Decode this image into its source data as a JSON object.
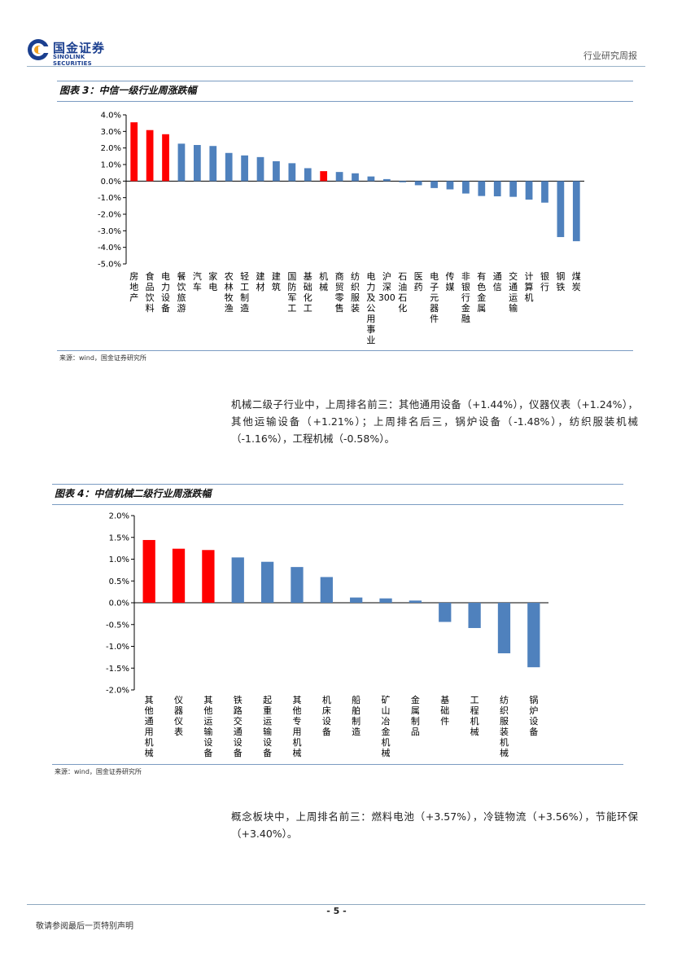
{
  "header": {
    "logo_cn": "国金证券",
    "logo_en": "SINOLINK SECURITIES",
    "doc_type": "行业研究周报"
  },
  "figure3": {
    "title": "图表 3：中信一级行业周涨跌幅",
    "source": "来源：wind，国金证券研究所"
  },
  "paragraph1": "机械二级子行业中，上周排名前三：其他通用设备（+1.44%），仪器仪表（+1.24%），其他运输设备（+1.21%）；上周排名后三，锅炉设备（-1.48%），纺织服装机械（-1.16%），工程机械（-0.58%）。",
  "figure4": {
    "title": "图表 4：中信机械二级行业周涨跌幅",
    "source": "来源：wind，国金证券研究所"
  },
  "paragraph2": "概念板块中，上周排名前三：燃料电池（+3.57%），冷链物流（+3.56%），节能环保（+3.40%）。",
  "footer": {
    "page_number": "- 5 -",
    "disclaimer": "敬请参阅最后一页特别声明"
  },
  "colors": {
    "highlight": "#ff0000",
    "bar": "#4f81bd",
    "accent": "#1b3f8f"
  },
  "chart_data": [
    {
      "type": "bar",
      "title": "图表 3：中信一级行业周涨跌幅",
      "ylim": [
        -5.0,
        4.0
      ],
      "yticks": [
        "4.0%",
        "3.0%",
        "2.0%",
        "1.0%",
        "0.0%",
        "-1.0%",
        "-2.0%",
        "-3.0%",
        "-4.0%",
        "-5.0%"
      ],
      "categories": [
        "房地产",
        "食品饮料",
        "电力设备",
        "餐饮旅游",
        "汽车",
        "家电",
        "农林牧渔",
        "轻工制造",
        "建材",
        "建筑",
        "国防军工",
        "基础化工",
        "机械",
        "商贸零售",
        "纺织服装",
        "电力及公用事业",
        "沪深300",
        "石油石化",
        "医药",
        "电子元器件",
        "传媒",
        "非银行金融",
        "有色金属",
        "通信",
        "交通运输",
        "计算机",
        "银行",
        "钢铁",
        "煤炭"
      ],
      "values": [
        3.55,
        3.08,
        2.83,
        2.26,
        2.18,
        2.12,
        1.7,
        1.55,
        1.45,
        1.2,
        1.08,
        0.78,
        0.6,
        0.55,
        0.47,
        0.28,
        0.12,
        -0.07,
        -0.25,
        -0.42,
        -0.5,
        -0.75,
        -0.9,
        -0.92,
        -0.95,
        -1.12,
        -1.3,
        -3.38,
        -3.63
      ],
      "highlighted": [
        "房地产",
        "食品饮料",
        "电力设备",
        "机械"
      ],
      "grid": false
    },
    {
      "type": "bar",
      "title": "图表 4：中信机械二级行业周涨跌幅",
      "ylim": [
        -2.0,
        2.0
      ],
      "yticks": [
        "2.0%",
        "1.5%",
        "1.0%",
        "0.5%",
        "0.0%",
        "-0.5%",
        "-1.0%",
        "-1.5%",
        "-2.0%"
      ],
      "categories": [
        "其他通用机械",
        "仪器仪表",
        "其他运输设备",
        "铁路交通设备",
        "起重运输设备",
        "其他专用机械",
        "机床设备",
        "船舶制造",
        "矿山冶金机械",
        "金属制品",
        "基础件",
        "工程机械",
        "纺织服装机械",
        "锅炉设备"
      ],
      "values": [
        1.44,
        1.24,
        1.21,
        1.04,
        0.94,
        0.82,
        0.59,
        0.12,
        0.1,
        0.05,
        -0.44,
        -0.58,
        -1.16,
        -1.48
      ],
      "highlighted": [
        "其他通用机械",
        "仪器仪表",
        "其他运输设备"
      ],
      "grid": false
    }
  ]
}
